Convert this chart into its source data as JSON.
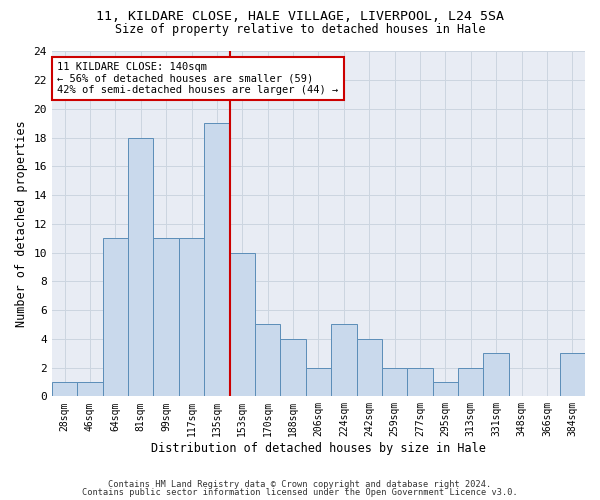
{
  "title1": "11, KILDARE CLOSE, HALE VILLAGE, LIVERPOOL, L24 5SA",
  "title2": "Size of property relative to detached houses in Hale",
  "xlabel": "Distribution of detached houses by size in Hale",
  "ylabel": "Number of detached properties",
  "categories": [
    "28sqm",
    "46sqm",
    "64sqm",
    "81sqm",
    "99sqm",
    "117sqm",
    "135sqm",
    "153sqm",
    "170sqm",
    "188sqm",
    "206sqm",
    "224sqm",
    "242sqm",
    "259sqm",
    "277sqm",
    "295sqm",
    "313sqm",
    "331sqm",
    "348sqm",
    "366sqm",
    "384sqm"
  ],
  "values": [
    1,
    1,
    11,
    18,
    11,
    11,
    19,
    10,
    5,
    4,
    2,
    5,
    4,
    2,
    2,
    1,
    2,
    3,
    0,
    0,
    3
  ],
  "bar_color": "#c9d9ec",
  "bar_edge_color": "#5b8db8",
  "vline_index": 7,
  "vline_color": "#cc0000",
  "annotation_text": "11 KILDARE CLOSE: 140sqm\n← 56% of detached houses are smaller (59)\n42% of semi-detached houses are larger (44) →",
  "annotation_box_color": "#ffffff",
  "annotation_box_edge_color": "#cc0000",
  "ylim": [
    0,
    24
  ],
  "yticks": [
    0,
    2,
    4,
    6,
    8,
    10,
    12,
    14,
    16,
    18,
    20,
    22,
    24
  ],
  "grid_color": "#ccd5e0",
  "bg_color": "#e8ecf4",
  "footer1": "Contains HM Land Registry data © Crown copyright and database right 2024.",
  "footer2": "Contains public sector information licensed under the Open Government Licence v3.0."
}
